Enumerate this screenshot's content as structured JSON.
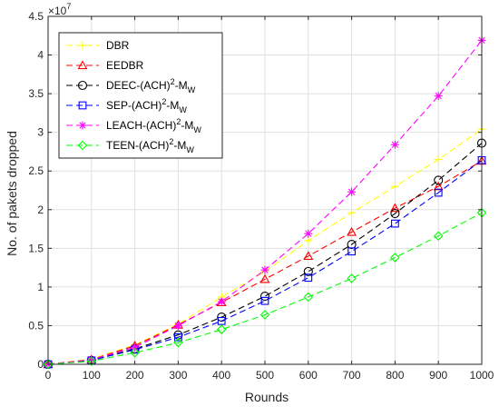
{
  "chart_data": {
    "type": "line",
    "xlabel": "Rounds",
    "ylabel": "No. of pakets dropped",
    "y_multiplier_label": "×10⁷",
    "y_multiplier_base": "×10",
    "y_multiplier_exp": "7",
    "xlim": [
      0,
      1000
    ],
    "ylim": [
      0,
      4.5
    ],
    "x_ticks": [
      0,
      100,
      200,
      300,
      400,
      500,
      600,
      700,
      800,
      900,
      1000
    ],
    "y_ticks": [
      0,
      0.5,
      1,
      1.5,
      2,
      2.5,
      3,
      3.5,
      4,
      4.5
    ],
    "grid": true,
    "legend_position": "top-left",
    "x": [
      0,
      100,
      200,
      300,
      400,
      500,
      600,
      700,
      800,
      900,
      1000
    ],
    "series": [
      {
        "name": "DBR",
        "legend_base": "DBR",
        "legend_sup": "",
        "legend_rest": "",
        "legend_sub": "",
        "color": "#ffff00",
        "marker": "plus",
        "values": [
          0,
          0.07,
          0.25,
          0.52,
          0.87,
          1.2,
          1.6,
          1.96,
          2.3,
          2.65,
          3.04
        ]
      },
      {
        "name": "EEDBR",
        "legend_base": "EEDBR",
        "legend_sup": "",
        "legend_rest": "",
        "legend_sub": "",
        "color": "#ff0000",
        "marker": "triangle",
        "values": [
          0,
          0.06,
          0.24,
          0.51,
          0.8,
          1.1,
          1.4,
          1.71,
          2.02,
          2.3,
          2.63
        ]
      },
      {
        "name": "DEEC-(ACH)2-MW",
        "legend_base": "DEEC-(ACH)",
        "legend_sup": "2",
        "legend_rest": "-M",
        "legend_sub": "W",
        "color": "#000000",
        "marker": "circle",
        "values": [
          0,
          0.05,
          0.2,
          0.38,
          0.61,
          0.88,
          1.2,
          1.55,
          1.95,
          2.38,
          2.86
        ]
      },
      {
        "name": "SEP-(ACH)2-MW",
        "legend_base": "SEP-(ACH)",
        "legend_sup": "2",
        "legend_rest": "-M",
        "legend_sub": "W",
        "color": "#0000ff",
        "marker": "square",
        "values": [
          0,
          0.05,
          0.19,
          0.35,
          0.56,
          0.82,
          1.12,
          1.46,
          1.82,
          2.22,
          2.64
        ]
      },
      {
        "name": "LEACH-(ACH)2-MW",
        "legend_base": "LEACH-(ACH)",
        "legend_sup": "2",
        "legend_rest": "-M",
        "legend_sub": "W",
        "color": "#ff00ff",
        "marker": "asterisk",
        "values": [
          0,
          0.06,
          0.22,
          0.5,
          0.81,
          1.22,
          1.69,
          2.23,
          2.84,
          3.47,
          4.19
        ]
      },
      {
        "name": "TEEN-(ACH)2-MW",
        "legend_base": "TEEN-(ACH)",
        "legend_sup": "2",
        "legend_rest": "-M",
        "legend_sub": "W",
        "color": "#00ff00",
        "marker": "diamond",
        "values": [
          0,
          0.04,
          0.15,
          0.28,
          0.45,
          0.64,
          0.87,
          1.11,
          1.38,
          1.66,
          1.96
        ]
      }
    ]
  }
}
